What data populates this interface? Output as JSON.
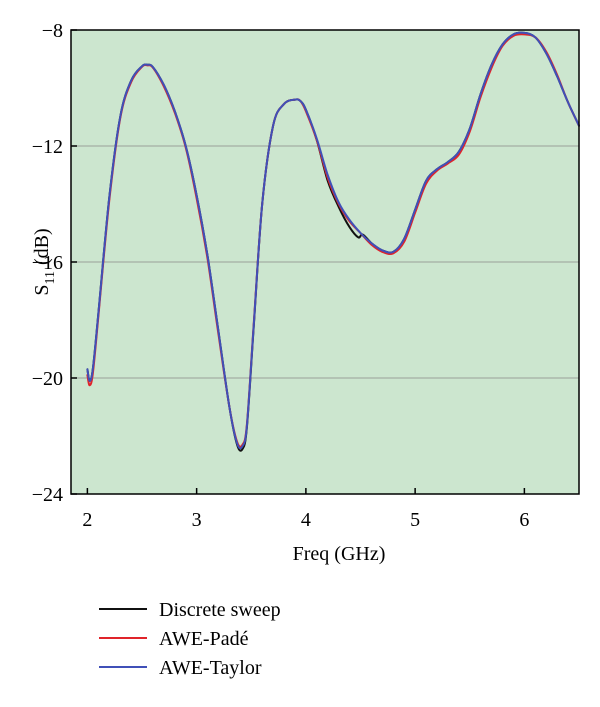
{
  "chart_data": {
    "type": "line",
    "xlabel": "Freq (GHz)",
    "ylabel": {
      "base": "S",
      "subscript": "11",
      "suffix": "(dB)"
    },
    "xlim": [
      1.85,
      6.5
    ],
    "ylim": [
      -24,
      -8
    ],
    "xticks": [
      2,
      3,
      4,
      5,
      6
    ],
    "xtick_labels": [
      "2",
      "3",
      "4",
      "5",
      "6"
    ],
    "yticks": [
      -24,
      -20,
      -16,
      -12,
      -8
    ],
    "ytick_labels": [
      "−24",
      "−20",
      "−16",
      "−12",
      "−8"
    ],
    "grid": "horizontal",
    "background_color": "#cce6cf",
    "legend_position": "below plot",
    "series": [
      {
        "name": "Discrete sweep",
        "color": "#111111",
        "x": [
          2.0,
          2.02,
          2.05,
          2.1,
          2.2,
          2.3,
          2.4,
          2.5,
          2.55,
          2.6,
          2.7,
          2.8,
          2.9,
          3.0,
          3.1,
          3.2,
          3.3,
          3.37,
          3.42,
          3.46,
          3.52,
          3.6,
          3.7,
          3.8,
          3.9,
          3.95,
          4.0,
          4.1,
          4.2,
          4.3,
          4.4,
          4.48,
          4.52,
          4.6,
          4.7,
          4.8,
          4.9,
          5.0,
          5.1,
          5.2,
          5.3,
          5.4,
          5.5,
          5.6,
          5.7,
          5.8,
          5.9,
          6.0,
          6.1,
          6.2,
          6.3,
          6.4,
          6.5
        ],
        "y": [
          -19.7,
          -20.1,
          -19.7,
          -17.8,
          -13.8,
          -11.0,
          -9.75,
          -9.25,
          -9.2,
          -9.28,
          -9.9,
          -10.8,
          -12.0,
          -13.7,
          -15.8,
          -18.4,
          -21.0,
          -22.3,
          -22.45,
          -21.7,
          -18.4,
          -14.0,
          -11.3,
          -10.55,
          -10.4,
          -10.45,
          -10.75,
          -11.8,
          -13.2,
          -14.1,
          -14.8,
          -15.15,
          -15.05,
          -15.35,
          -15.6,
          -15.65,
          -15.2,
          -14.2,
          -13.2,
          -12.8,
          -12.55,
          -12.2,
          -11.4,
          -10.2,
          -9.2,
          -8.5,
          -8.15,
          -8.1,
          -8.25,
          -8.8,
          -9.6,
          -10.5,
          -11.3
        ]
      },
      {
        "name": "AWE-Padé",
        "color": "#e0242a",
        "x": [
          2.0,
          2.02,
          2.05,
          2.1,
          2.2,
          2.3,
          2.4,
          2.5,
          2.55,
          2.6,
          2.7,
          2.8,
          2.9,
          3.0,
          3.1,
          3.2,
          3.3,
          3.37,
          3.42,
          3.46,
          3.52,
          3.6,
          3.7,
          3.8,
          3.9,
          3.95,
          4.0,
          4.1,
          4.2,
          4.3,
          4.4,
          4.5,
          4.6,
          4.7,
          4.8,
          4.9,
          5.0,
          5.1,
          5.2,
          5.3,
          5.4,
          5.5,
          5.6,
          5.7,
          5.8,
          5.9,
          6.0,
          6.1,
          6.2,
          6.3,
          6.4,
          6.5
        ],
        "y": [
          -19.9,
          -20.25,
          -19.85,
          -17.9,
          -13.9,
          -11.05,
          -9.8,
          -9.27,
          -9.22,
          -9.3,
          -9.95,
          -10.85,
          -12.05,
          -13.8,
          -15.9,
          -18.5,
          -21.0,
          -22.2,
          -22.3,
          -21.6,
          -18.3,
          -14.0,
          -11.3,
          -10.55,
          -10.4,
          -10.45,
          -10.8,
          -11.8,
          -13.1,
          -14.0,
          -14.6,
          -15.0,
          -15.4,
          -15.65,
          -15.7,
          -15.3,
          -14.3,
          -13.3,
          -12.85,
          -12.6,
          -12.3,
          -11.5,
          -10.3,
          -9.3,
          -8.55,
          -8.2,
          -8.15,
          -8.25,
          -8.75,
          -9.55,
          -10.5,
          -11.3
        ]
      },
      {
        "name": "AWE-Taylor",
        "color": "#4050b8",
        "x": [
          2.0,
          2.02,
          2.05,
          2.1,
          2.2,
          2.3,
          2.4,
          2.5,
          2.55,
          2.6,
          2.7,
          2.8,
          2.9,
          3.0,
          3.1,
          3.2,
          3.3,
          3.37,
          3.42,
          3.46,
          3.52,
          3.6,
          3.7,
          3.8,
          3.9,
          3.95,
          4.0,
          4.1,
          4.2,
          4.3,
          4.4,
          4.5,
          4.6,
          4.7,
          4.8,
          4.9,
          5.0,
          5.1,
          5.2,
          5.3,
          5.4,
          5.5,
          5.6,
          5.7,
          5.8,
          5.9,
          6.0,
          6.1,
          6.2,
          6.3,
          6.4,
          6.5
        ],
        "y": [
          -19.7,
          -20.1,
          -19.7,
          -17.8,
          -13.8,
          -11.0,
          -9.75,
          -9.25,
          -9.2,
          -9.28,
          -9.9,
          -10.8,
          -12.0,
          -13.7,
          -15.8,
          -18.4,
          -21.0,
          -22.25,
          -22.35,
          -21.65,
          -18.35,
          -14.0,
          -11.3,
          -10.55,
          -10.4,
          -10.45,
          -10.75,
          -11.75,
          -13.0,
          -13.95,
          -14.55,
          -15.0,
          -15.35,
          -15.6,
          -15.65,
          -15.2,
          -14.2,
          -13.2,
          -12.8,
          -12.55,
          -12.2,
          -11.4,
          -10.2,
          -9.2,
          -8.5,
          -8.15,
          -8.1,
          -8.25,
          -8.8,
          -9.6,
          -10.5,
          -11.3
        ]
      }
    ]
  }
}
